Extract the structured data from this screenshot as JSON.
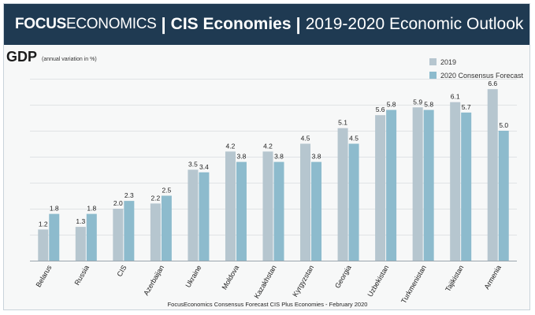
{
  "header": {
    "brand_bold": "FOCUS",
    "brand_light": "ECONOMICS",
    "separator": "|",
    "region": "CIS Economies",
    "outlook": "2019-2020 Economic Outlook"
  },
  "title": "GDP",
  "subtitle": "(annual variation in %)",
  "footer": "FocusEconomics Consensus Forecast CIS Plus Economies -  February 2020",
  "colors": {
    "header_bg": "#1f3a52",
    "series_2019": "#b6c6cf",
    "series_2020": "#8dbbcd"
  },
  "legend": [
    {
      "label": "2019",
      "color": "#b6c6cf"
    },
    {
      "label": "2020 Consensus Forecast",
      "color": "#8dbbcd"
    }
  ],
  "chart_data": {
    "type": "bar",
    "categories": [
      "Belarus",
      "Russia",
      "CIS",
      "Azerbaijan",
      "Ukraine",
      "Moldova",
      "Kazakhstan",
      "Kyrgyzstan",
      "Georgia",
      "Uzbekistan",
      "Turkmenistan",
      "Tajikistan",
      "Armenia"
    ],
    "series": [
      {
        "name": "2019",
        "values": [
          1.2,
          1.3,
          2.0,
          2.2,
          3.5,
          4.2,
          4.2,
          4.5,
          5.1,
          5.6,
          5.9,
          6.1,
          6.6
        ]
      },
      {
        "name": "2020 Consensus Forecast",
        "values": [
          1.8,
          1.8,
          2.3,
          2.5,
          3.4,
          3.8,
          3.8,
          3.8,
          4.5,
          5.8,
          5.8,
          5.7,
          5.0
        ]
      }
    ],
    "ylim": [
      0,
      7
    ],
    "grid": true,
    "legend_position": "top-right"
  }
}
